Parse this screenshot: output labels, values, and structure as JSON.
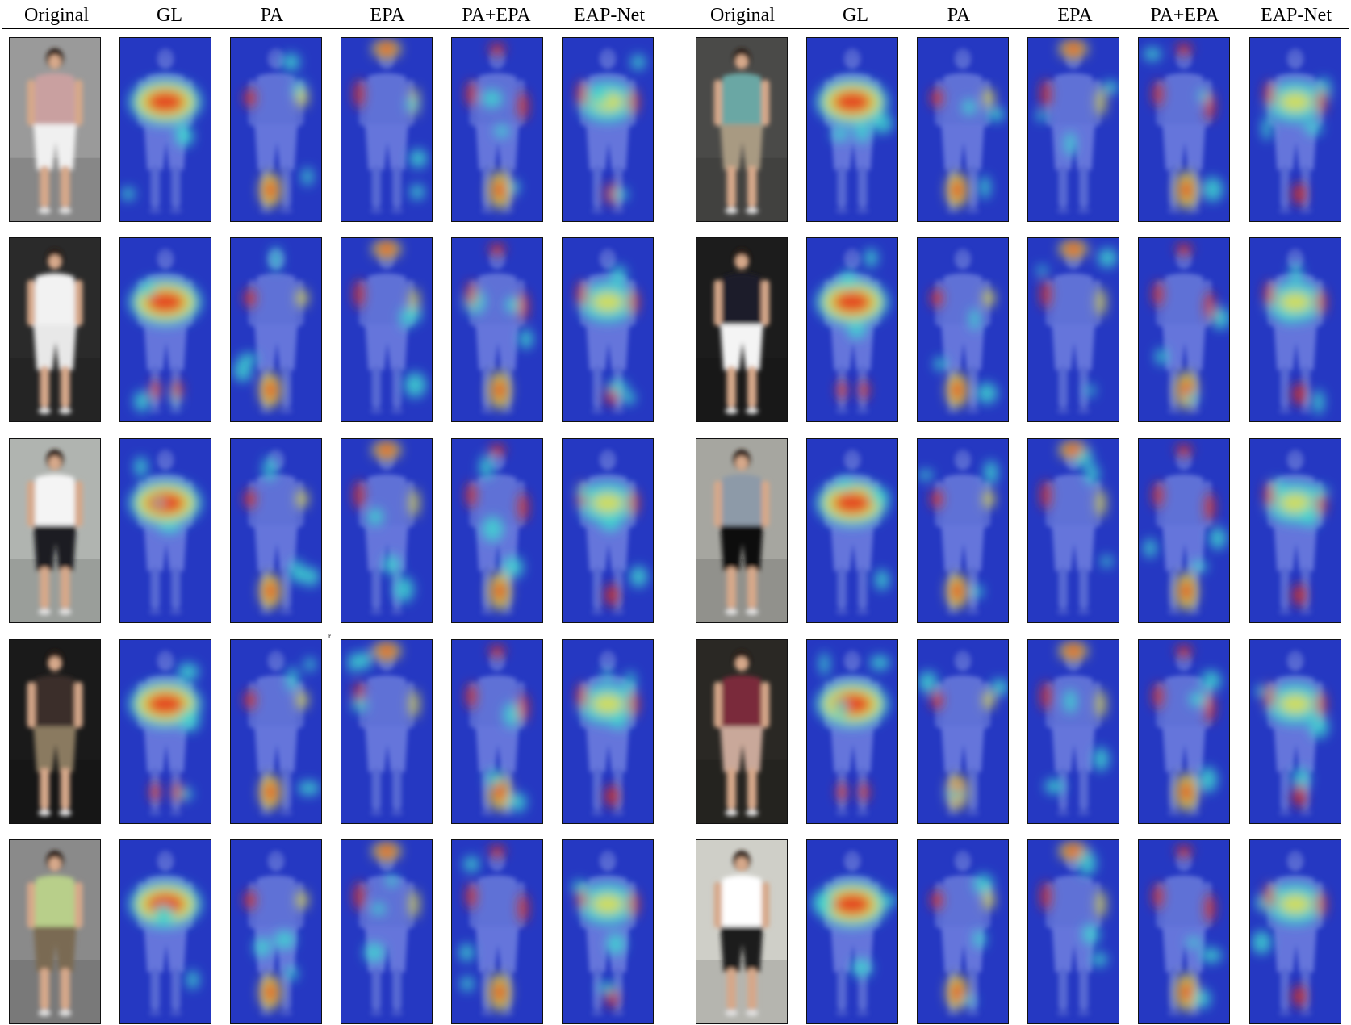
{
  "figure": {
    "column_headers": [
      "Original",
      "GL",
      "PA",
      "EPA",
      "PA+EPA",
      "EAP-Net",
      "Original",
      "GL",
      "PA",
      "EPA",
      "PA+EPA",
      "EAP-Net"
    ],
    "row_count": 5,
    "panel_kind": [
      "photo",
      "heatmap",
      "heatmap",
      "heatmap",
      "heatmap",
      "heatmap",
      "photo",
      "heatmap",
      "heatmap",
      "heatmap",
      "heatmap",
      "heatmap"
    ],
    "stray_mark": "r"
  },
  "colors": {
    "heat_low": "#2a3fd8",
    "heat_mid": "#3fd6d0",
    "heat_warm": "#e8e048",
    "heat_high": "#e83018",
    "heat_peak": "#c81010"
  }
}
